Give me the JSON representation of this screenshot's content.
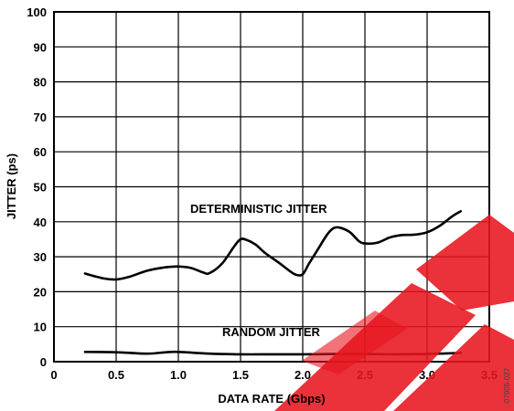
{
  "chart_data": {
    "type": "line",
    "xlabel": "DATA RATE (Gbps)",
    "ylabel": "JITTER (ps)",
    "xlim": [
      0,
      3.5
    ],
    "ylim": [
      0,
      100
    ],
    "x_ticks": [
      "0",
      "0.5",
      "1.0",
      "1.5",
      "2.0",
      "2.5",
      "3.0",
      "3.5"
    ],
    "y_ticks": [
      "0",
      "10",
      "20",
      "30",
      "40",
      "50",
      "60",
      "70",
      "80",
      "90",
      "100"
    ],
    "grid": true,
    "series": [
      {
        "name": "DETERMINISTIC JITTER",
        "x": [
          0.25,
          0.4,
          0.5,
          0.6,
          0.75,
          0.9,
          1.0,
          1.1,
          1.2,
          1.25,
          1.35,
          1.45,
          1.5,
          1.55,
          1.62,
          1.7,
          1.8,
          1.9,
          1.95,
          2.0,
          2.05,
          2.12,
          2.2,
          2.25,
          2.3,
          2.38,
          2.45,
          2.5,
          2.6,
          2.7,
          2.8,
          2.9,
          3.0,
          3.1,
          3.2,
          3.27
        ],
        "y": [
          25.2,
          23.8,
          23.5,
          24.2,
          26.0,
          27.0,
          27.2,
          26.8,
          25.5,
          25.3,
          28.0,
          33.0,
          35.0,
          34.8,
          33.5,
          31.0,
          28.5,
          25.8,
          24.8,
          25.0,
          28.0,
          32.0,
          36.5,
          38.2,
          38.3,
          37.0,
          34.5,
          33.8,
          34.0,
          35.5,
          36.2,
          36.3,
          37.0,
          38.8,
          41.5,
          43.0
        ],
        "color": "#000000"
      },
      {
        "name": "RANDOM JITTER",
        "x": [
          0.25,
          0.5,
          0.75,
          0.9,
          1.0,
          1.25,
          1.5,
          1.75,
          2.0,
          2.25,
          2.5,
          2.75,
          3.0,
          3.27
        ],
        "y": [
          2.8,
          2.7,
          2.3,
          2.7,
          2.8,
          2.3,
          2.1,
          2.1,
          2.1,
          2.2,
          2.2,
          2.1,
          2.2,
          2.5
        ],
        "color": "#000000"
      }
    ],
    "annotations": [
      "DETERMINISTIC JITTER",
      "RANDOM JITTER"
    ],
    "figure_id": "07905-027",
    "watermark_color": "#e8141e"
  }
}
